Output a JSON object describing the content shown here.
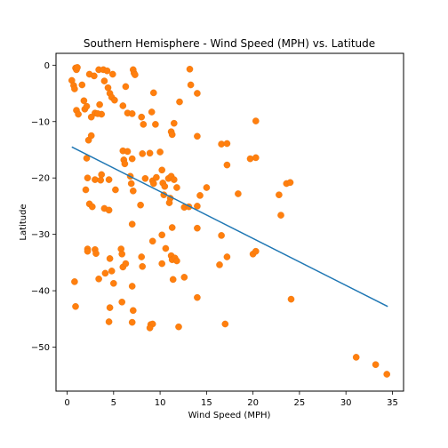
{
  "chart_data": {
    "type": "scatter",
    "title": "Southern Hemisphere - Wind Speed (MPH) vs. Latitude",
    "xlabel": "Wind Speed (MPH)",
    "ylabel": "Latitude",
    "xlim": [
      -1.2,
      36.2
    ],
    "ylim": [
      -57.8,
      2.1
    ],
    "xticks": [
      0,
      5,
      10,
      15,
      20,
      25,
      30,
      35
    ],
    "yticks": [
      0,
      -10,
      -20,
      -30,
      -40,
      -50
    ],
    "grid": false,
    "colors": {
      "points": "#ff7f0e",
      "line": "#1f77b4"
    },
    "regression": {
      "x": [
        0.5,
        34.5
      ],
      "y": [
        -14.5,
        -42.8
      ]
    },
    "points": [
      [
        0.5,
        -2.7
      ],
      [
        0.7,
        -3.6
      ],
      [
        0.8,
        -4.2
      ],
      [
        0.9,
        -0.5
      ],
      [
        1.0,
        -0.8
      ],
      [
        1.1,
        -0.4
      ],
      [
        1.0,
        -8.0
      ],
      [
        1.2,
        -8.7
      ],
      [
        1.6,
        -3.5
      ],
      [
        1.8,
        -6.3
      ],
      [
        1.9,
        -7.8
      ],
      [
        2.1,
        -7.3
      ],
      [
        2.4,
        -1.6
      ],
      [
        2.9,
        -1.9
      ],
      [
        3.4,
        -0.8
      ],
      [
        3.9,
        -0.8
      ],
      [
        4.3,
        -1.0
      ],
      [
        4.9,
        -1.6
      ],
      [
        3.0,
        -8.5
      ],
      [
        2.6,
        -9.2
      ],
      [
        3.7,
        -8.7
      ],
      [
        3.3,
        -8.6
      ],
      [
        3.5,
        -7.0
      ],
      [
        4.0,
        -2.8
      ],
      [
        4.4,
        -4.0
      ],
      [
        4.6,
        -5.0
      ],
      [
        4.8,
        -5.7
      ],
      [
        5.1,
        -6.2
      ],
      [
        6.0,
        -7.2
      ],
      [
        6.5,
        -8.5
      ],
      [
        7.0,
        -8.6
      ],
      [
        7.1,
        -0.8
      ],
      [
        7.2,
        -1.4
      ],
      [
        7.3,
        -1.7
      ],
      [
        6.3,
        -3.8
      ],
      [
        8.0,
        -9.2
      ],
      [
        8.2,
        -10.5
      ],
      [
        9.1,
        -8.3
      ],
      [
        9.3,
        -4.9
      ],
      [
        9.5,
        -10.5
      ],
      [
        11.5,
        -10.3
      ],
      [
        12.1,
        -6.5
      ],
      [
        13.2,
        -0.7
      ],
      [
        13.3,
        -3.5
      ],
      [
        14.0,
        -5.0
      ],
      [
        11.2,
        -11.8
      ],
      [
        11.3,
        -12.3
      ],
      [
        14.0,
        -12.6
      ],
      [
        20.3,
        -9.9
      ],
      [
        2.3,
        -13.3
      ],
      [
        2.6,
        -12.5
      ],
      [
        2.1,
        -16.5
      ],
      [
        2.2,
        -20.0
      ],
      [
        2.0,
        -22.1
      ],
      [
        2.4,
        -24.6
      ],
      [
        2.7,
        -25.1
      ],
      [
        3.0,
        -20.3
      ],
      [
        3.7,
        -19.4
      ],
      [
        3.6,
        -20.4
      ],
      [
        4.0,
        -25.4
      ],
      [
        4.5,
        -25.7
      ],
      [
        4.5,
        -20.3
      ],
      [
        5.2,
        -22.1
      ],
      [
        6.0,
        -15.2
      ],
      [
        6.1,
        -16.8
      ],
      [
        6.2,
        -17.5
      ],
      [
        6.5,
        -15.3
      ],
      [
        6.8,
        -19.7
      ],
      [
        7.0,
        -16.6
      ],
      [
        6.9,
        -21.0
      ],
      [
        7.1,
        -22.3
      ],
      [
        7.9,
        -24.8
      ],
      [
        8.1,
        -15.7
      ],
      [
        8.4,
        -20.1
      ],
      [
        8.9,
        -15.6
      ],
      [
        9.2,
        -20.5
      ],
      [
        9.3,
        -21.0
      ],
      [
        9.6,
        -19.9
      ],
      [
        10.0,
        -15.4
      ],
      [
        10.2,
        -18.6
      ],
      [
        10.3,
        -20.9
      ],
      [
        10.5,
        -21.5
      ],
      [
        10.4,
        -23.0
      ],
      [
        10.9,
        -20.1
      ],
      [
        11.2,
        -19.7
      ],
      [
        11.5,
        -20.3
      ],
      [
        11.1,
        -23.6
      ],
      [
        11.0,
        -24.4
      ],
      [
        11.8,
        -21.7
      ],
      [
        12.6,
        -25.2
      ],
      [
        13.1,
        -25.1
      ],
      [
        14.0,
        -25.0
      ],
      [
        14.3,
        -23.1
      ],
      [
        15.0,
        -21.7
      ],
      [
        16.6,
        -14.0
      ],
      [
        17.2,
        -13.9
      ],
      [
        17.2,
        -17.7
      ],
      [
        18.4,
        -22.8
      ],
      [
        19.7,
        -16.6
      ],
      [
        20.3,
        -16.4
      ],
      [
        22.8,
        -23.0
      ],
      [
        23.6,
        -21.0
      ],
      [
        24.0,
        -20.8
      ],
      [
        23.0,
        -26.6
      ],
      [
        7.0,
        -28.2
      ],
      [
        10.2,
        -30.1
      ],
      [
        9.2,
        -31.2
      ],
      [
        10.6,
        -32.5
      ],
      [
        11.3,
        -28.8
      ],
      [
        14.0,
        -28.9
      ],
      [
        16.6,
        -30.2
      ],
      [
        20.0,
        -33.5
      ],
      [
        20.3,
        -33.0
      ],
      [
        17.2,
        -34.0
      ],
      [
        16.4,
        -35.4
      ],
      [
        0.8,
        -38.4
      ],
      [
        0.9,
        -42.8
      ],
      [
        2.2,
        -32.6
      ],
      [
        2.2,
        -33.0
      ],
      [
        3.0,
        -32.7
      ],
      [
        3.1,
        -33.4
      ],
      [
        3.4,
        -37.9
      ],
      [
        4.1,
        -36.9
      ],
      [
        4.6,
        -34.3
      ],
      [
        4.8,
        -36.5
      ],
      [
        5.0,
        -38.7
      ],
      [
        5.8,
        -32.6
      ],
      [
        5.9,
        -33.5
      ],
      [
        6.0,
        -35.8
      ],
      [
        6.3,
        -35.2
      ],
      [
        7.0,
        -39.2
      ],
      [
        8.0,
        -34.0
      ],
      [
        8.1,
        -35.7
      ],
      [
        10.2,
        -35.2
      ],
      [
        11.2,
        -33.8
      ],
      [
        11.3,
        -34.5
      ],
      [
        11.6,
        -34.2
      ],
      [
        11.8,
        -34.7
      ],
      [
        11.4,
        -38.0
      ],
      [
        12.6,
        -37.6
      ],
      [
        14.0,
        -41.2
      ],
      [
        4.6,
        -43.0
      ],
      [
        5.9,
        -42.0
      ],
      [
        7.1,
        -43.5
      ],
      [
        4.5,
        -45.5
      ],
      [
        7.0,
        -45.6
      ],
      [
        9.0,
        -46.0
      ],
      [
        9.2,
        -45.9
      ],
      [
        8.9,
        -46.6
      ],
      [
        12.0,
        -46.4
      ],
      [
        17.0,
        -45.9
      ],
      [
        24.1,
        -41.5
      ],
      [
        31.1,
        -51.8
      ],
      [
        33.2,
        -53.1
      ],
      [
        34.4,
        -54.8
      ]
    ]
  }
}
